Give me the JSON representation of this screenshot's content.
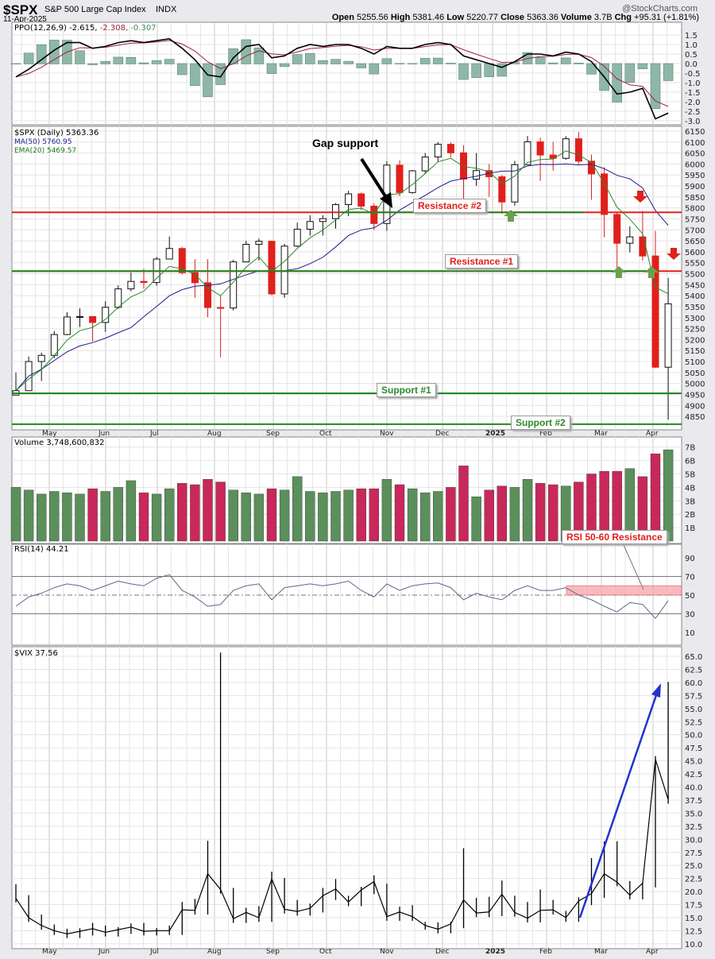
{
  "header": {
    "symbol": "$SPX",
    "name": "S&P 500 Large Cap Index",
    "exchange": "INDX",
    "date": "11-Apr-2025",
    "brand": "@StockCharts.com",
    "ohlc": [
      [
        "Open",
        "5255.56"
      ],
      [
        "High",
        "5381.46"
      ],
      [
        "Low",
        "5220.77"
      ],
      [
        "Close",
        "5363.36"
      ],
      [
        "Volume",
        "3.7B"
      ],
      [
        "Chg",
        "+95.31 (+1.81%)"
      ]
    ]
  },
  "legends": {
    "ppo": {
      "label": "PPO(12,26,9)",
      "v1": "-2.615,",
      "v2": "-2.308,",
      "v3": "-0.307"
    },
    "price": {
      "label": "$SPX (Daily) 5363.36",
      "ma": "MA(50) 5760.95",
      "ema": "EMA(20) 5469.57"
    },
    "volume": {
      "label": "Volume 3,748,600,832"
    },
    "rsi": {
      "label": "RSI(14) 44.21"
    },
    "vix": {
      "label": "$VIX 37.56"
    }
  },
  "annotations": {
    "gap": "Gap support",
    "res2": "Resistance #2",
    "res1": "Resistance #1",
    "sup1": "Support #1",
    "sup2": "Support #2",
    "rsi": "RSI 50-60 Resistance"
  },
  "colors": {
    "up": "#5b8f5b",
    "down": "#c8285a",
    "red": "#e0201c",
    "green": "#1e8a1e",
    "ma": "#1c1c8c",
    "ema": "#2a8a2a",
    "ppo_signal": "#a02040",
    "vix_arrow": "#2233cc"
  },
  "chart_data": {
    "type": "candlestick",
    "months": [
      "May",
      "Jun",
      "Jul",
      "Aug",
      "Sep",
      "Oct",
      "Nov",
      "Dec",
      "2025",
      "Feb",
      "Mar",
      "Apr"
    ],
    "axes": {
      "ppo_ticks": [
        "1.5",
        "1.0",
        "0.5",
        "0.0",
        "-0.5",
        "-1.0",
        "-1.5",
        "-2.0",
        "-2.5",
        "-3.0"
      ],
      "price_ticks": [
        "6150",
        "6100",
        "6050",
        "6000",
        "5950",
        "5900",
        "5850",
        "5800",
        "5750",
        "5700",
        "5650",
        "5600",
        "5550",
        "5500",
        "5450",
        "5400",
        "5350",
        "5300",
        "5250",
        "5200",
        "5150",
        "5100",
        "5050",
        "5000",
        "4950",
        "4900",
        "4850"
      ],
      "volume_ticks": [
        "7B",
        "6B",
        "5B",
        "4B",
        "3B",
        "2B",
        "1B"
      ],
      "rsi_ticks": [
        "90",
        "70",
        "50",
        "30",
        "10"
      ],
      "vix_ticks": [
        "65.0",
        "62.5",
        "60.0",
        "57.5",
        "55.0",
        "52.5",
        "50.0",
        "47.5",
        "45.0",
        "42.5",
        "40.0",
        "37.5",
        "35.0",
        "32.5",
        "30.0",
        "27.5",
        "25.0",
        "22.5",
        "20.0",
        "17.5",
        "15.0",
        "12.5",
        "10.0"
      ]
    },
    "levels": {
      "resistance2": 5780,
      "resistance1": 5512,
      "support1": 4955,
      "support2": 4800,
      "rsi_zone": [
        50,
        60
      ]
    },
    "price": {
      "close": [
        4967,
        5100,
        5128,
        5223,
        5303,
        5305,
        5278,
        5347,
        5431,
        5465,
        5460,
        5567,
        5615,
        5505,
        5459,
        5346,
        5344,
        5554,
        5634,
        5648,
        5408,
        5626,
        5703,
        5738,
        5751,
        5815,
        5864,
        5808,
        5729,
        5995,
        5870,
        5969,
        6032,
        6090,
        6051,
        5931,
        5970,
        5942,
        5827,
        5997,
        6101,
        6041,
        6026,
        6115,
        6013,
        5955,
        5770,
        5639,
        5668,
        5581,
        5074,
        5363
      ],
      "high": [
        5050,
        5123,
        5140,
        5239,
        5325,
        5342,
        5300,
        5375,
        5447,
        5505,
        5523,
        5576,
        5670,
        5622,
        5566,
        5566,
        5400,
        5563,
        5650,
        5660,
        5651,
        5636,
        5733,
        5767,
        5767,
        5822,
        5878,
        5870,
        5820,
        6012,
        6017,
        5973,
        6050,
        6100,
        6099,
        6085,
        6050,
        6000,
        5950,
        6014,
        6128,
        6120,
        6101,
        6127,
        6147,
        6043,
        5985,
        5783,
        5716,
        5787,
        5695,
        5481
      ],
      "low": [
        4953,
        4967,
        5011,
        5115,
        5220,
        5257,
        5192,
        5235,
        5340,
        5420,
        5432,
        5446,
        5566,
        5497,
        5390,
        5302,
        5119,
        5333,
        5560,
        5560,
        5402,
        5390,
        5621,
        5674,
        5674,
        5705,
        5762,
        5790,
        5700,
        5696,
        5853,
        5865,
        5958,
        6010,
        6030,
        5832,
        5900,
        5850,
        5773,
        5809,
        6002,
        5923,
        5970,
        6020,
        6000,
        5837,
        5666,
        5504,
        5597,
        5560,
        5070,
        4835
      ]
    },
    "ppo": [
      -0.7,
      -0.3,
      0.2,
      0.7,
      1.1,
      1.1,
      0.8,
      0.9,
      1.1,
      1.2,
      1.1,
      1.2,
      1.3,
      0.8,
      0.2,
      -0.6,
      -0.7,
      0.3,
      0.9,
      1.0,
      0.3,
      0.4,
      0.8,
      1.0,
      0.9,
      1.0,
      1.0,
      0.8,
      0.5,
      0.9,
      0.8,
      0.8,
      1.0,
      1.1,
      1.0,
      0.4,
      0.2,
      0.0,
      -0.2,
      0.1,
      0.5,
      0.5,
      0.4,
      0.6,
      0.5,
      0.1,
      -0.7,
      -1.6,
      -1.5,
      -1.3,
      -2.9,
      -2.6
    ],
    "volume_b": [
      4.0,
      3.8,
      3.5,
      3.7,
      3.6,
      3.5,
      3.9,
      3.7,
      4.0,
      4.5,
      3.6,
      3.5,
      3.9,
      4.3,
      4.2,
      4.6,
      4.4,
      3.8,
      3.6,
      3.5,
      3.9,
      3.8,
      4.8,
      3.7,
      3.6,
      3.7,
      3.8,
      3.9,
      3.9,
      4.6,
      4.2,
      3.9,
      3.6,
      3.7,
      4.0,
      5.6,
      3.3,
      3.8,
      4.1,
      4.0,
      4.6,
      4.3,
      4.2,
      4.1,
      4.4,
      5.0,
      5.2,
      5.2,
      5.4,
      4.8,
      6.5,
      6.8
    ],
    "rsi": [
      38,
      48,
      52,
      58,
      62,
      60,
      55,
      60,
      65,
      62,
      60,
      68,
      72,
      55,
      48,
      38,
      40,
      55,
      60,
      62,
      45,
      58,
      60,
      62,
      60,
      62,
      65,
      55,
      48,
      62,
      55,
      60,
      62,
      63,
      58,
      45,
      52,
      48,
      45,
      55,
      60,
      55,
      55,
      58,
      50,
      45,
      38,
      32,
      42,
      40,
      25,
      44
    ],
    "vix": {
      "close": [
        18.7,
        15.0,
        13.5,
        12.5,
        11.9,
        12.4,
        12.9,
        12.2,
        12.7,
        13.2,
        12.4,
        12.5,
        12.5,
        16.5,
        16.4,
        23.4,
        20.4,
        14.8,
        16.0,
        15.0,
        22.4,
        16.6,
        16.2,
        16.8,
        19.2,
        20.5,
        18.0,
        20.3,
        21.9,
        15.2,
        16.1,
        15.2,
        13.5,
        12.8,
        13.8,
        18.4,
        15.9,
        16.1,
        19.5,
        16.0,
        14.9,
        16.4,
        16.5,
        15.0,
        18.2,
        19.6,
        23.4,
        21.8,
        19.3,
        21.6,
        45.3,
        37.6
      ],
      "high": [
        21.4,
        19.3,
        15.6,
        13.7,
        12.9,
        13.0,
        14.0,
        13.5,
        13.2,
        13.9,
        14.0,
        13.0,
        13.5,
        18.0,
        18.6,
        29.7,
        65.7,
        20.7,
        16.9,
        17.2,
        23.8,
        22.6,
        18.4,
        17.7,
        20.7,
        22.4,
        19.2,
        20.9,
        23.1,
        21.5,
        17.1,
        17.4,
        14.2,
        14.1,
        14.2,
        28.3,
        18.8,
        19.0,
        22.1,
        19.2,
        18.0,
        20.4,
        18.4,
        16.3,
        18.9,
        26.4,
        29.6,
        29.6,
        22.0,
        21.7,
        45.9,
        60.1
      ]
    }
  }
}
